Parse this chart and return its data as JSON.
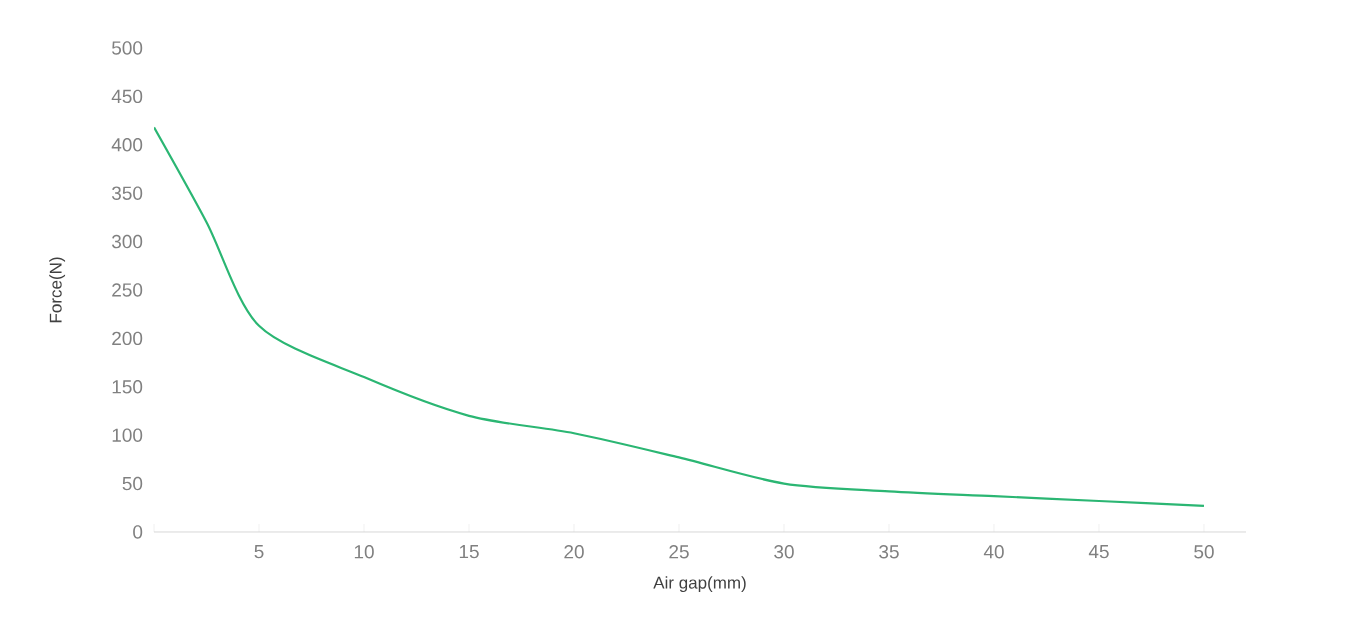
{
  "chart_data": {
    "type": "line",
    "xlabel": "Air gap(mm)",
    "ylabel": "Force(N)",
    "x": [
      0,
      2.5,
      5,
      10,
      15,
      20,
      25,
      30,
      35,
      40,
      45,
      50
    ],
    "series": [
      {
        "color": "#2bb673",
        "values": [
          418,
          320,
          213,
          160,
          120,
          102,
          77,
          50,
          42,
          37,
          32,
          27
        ]
      }
    ],
    "xlim": [
      0,
      52
    ],
    "xticks": [
      {
        "value": 0,
        "label": null
      },
      5,
      10,
      15,
      20,
      25,
      30,
      35,
      40,
      45,
      50
    ],
    "ylim": [
      0,
      500
    ],
    "yticks": [
      0,
      50,
      100,
      150,
      200,
      250,
      300,
      350,
      400,
      450,
      500
    ],
    "grid": false,
    "marker": "none",
    "line_style": "solid"
  }
}
